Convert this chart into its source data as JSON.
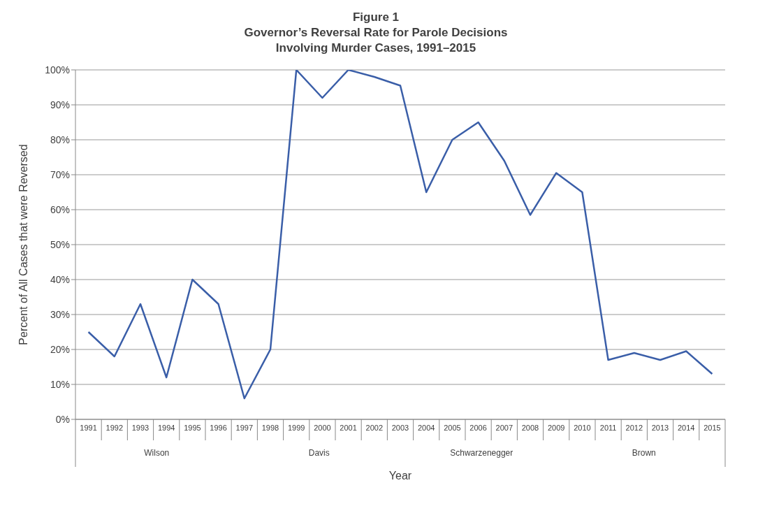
{
  "chart_data": {
    "type": "line",
    "title": "Figure 1\nGovernor’s Reversal Rate for Parole Decisions\nInvolving Murder Cases, 1991–2015",
    "xlabel": "Year",
    "ylabel": "Percent of All Cases that were Reversed",
    "categories": [
      "1991",
      "1992",
      "1993",
      "1994",
      "1995",
      "1996",
      "1997",
      "1998",
      "1999",
      "2000",
      "2001",
      "2002",
      "2003",
      "2004",
      "2005",
      "2006",
      "2007",
      "2008",
      "2009",
      "2010",
      "2011",
      "2012",
      "2013",
      "2014",
      "2015"
    ],
    "series": [
      {
        "color": "#3a5ea8",
        "values": [
          25,
          18,
          33,
          12,
          40,
          33,
          6,
          20,
          100,
          92,
          100,
          98,
          95.5,
          65,
          80,
          85,
          74,
          58.5,
          70.5,
          65,
          17,
          19,
          17,
          19.5,
          13
        ]
      }
    ],
    "ylim": [
      0,
      100
    ],
    "yticks": [
      {
        "value": 0,
        "label": "0%"
      },
      {
        "value": 10,
        "label": "10%"
      },
      {
        "value": 20,
        "label": "20%"
      },
      {
        "value": 30,
        "label": "30%"
      },
      {
        "value": 40,
        "label": "40%"
      },
      {
        "value": 50,
        "label": "50%"
      },
      {
        "value": 60,
        "label": "60%"
      },
      {
        "value": 70,
        "label": "70%"
      },
      {
        "value": 80,
        "label": "80%"
      },
      {
        "value": 90,
        "label": "90%"
      },
      {
        "value": 100,
        "label": "100%"
      }
    ],
    "annotations": [
      "Wilson",
      "Davis",
      "Schwarzenegger",
      "Brown"
    ],
    "grid": "y",
    "marker": "none",
    "line_style": "solid"
  }
}
